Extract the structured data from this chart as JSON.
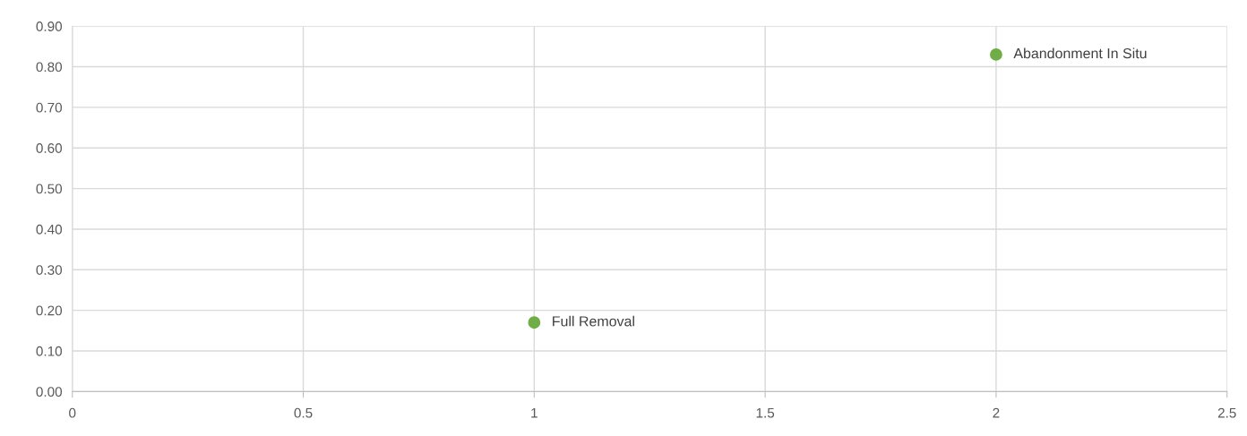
{
  "chart_data": {
    "type": "scatter",
    "x": [
      1,
      2
    ],
    "series": [
      {
        "color": "#70ad47",
        "values": [
          0.17,
          0.83
        ]
      }
    ],
    "xlim": [
      0,
      2.5
    ],
    "xticks": [
      0,
      0.5,
      1,
      1.5,
      2,
      2.5
    ],
    "ylim": [
      0,
      0.9
    ],
    "yticks": [
      {
        "value": 0,
        "label": "0.00"
      },
      {
        "value": 0.1,
        "label": "0.10"
      },
      {
        "value": 0.2,
        "label": "0.20"
      },
      {
        "value": 0.3,
        "label": "0.30"
      },
      {
        "value": 0.4,
        "label": "0.40"
      },
      {
        "value": 0.5,
        "label": "0.50"
      },
      {
        "value": 0.6,
        "label": "0.60"
      },
      {
        "value": 0.7,
        "label": "0.70"
      },
      {
        "value": 0.8,
        "label": "0.80"
      },
      {
        "value": 0.9,
        "label": "0.90"
      }
    ],
    "grid": true,
    "marker": "circle",
    "annotations": [
      {
        "text": "Full Removal",
        "x": 1,
        "y": 0.17
      },
      {
        "text": "Abandonment In Situ",
        "x": 2,
        "y": 0.83
      }
    ]
  }
}
